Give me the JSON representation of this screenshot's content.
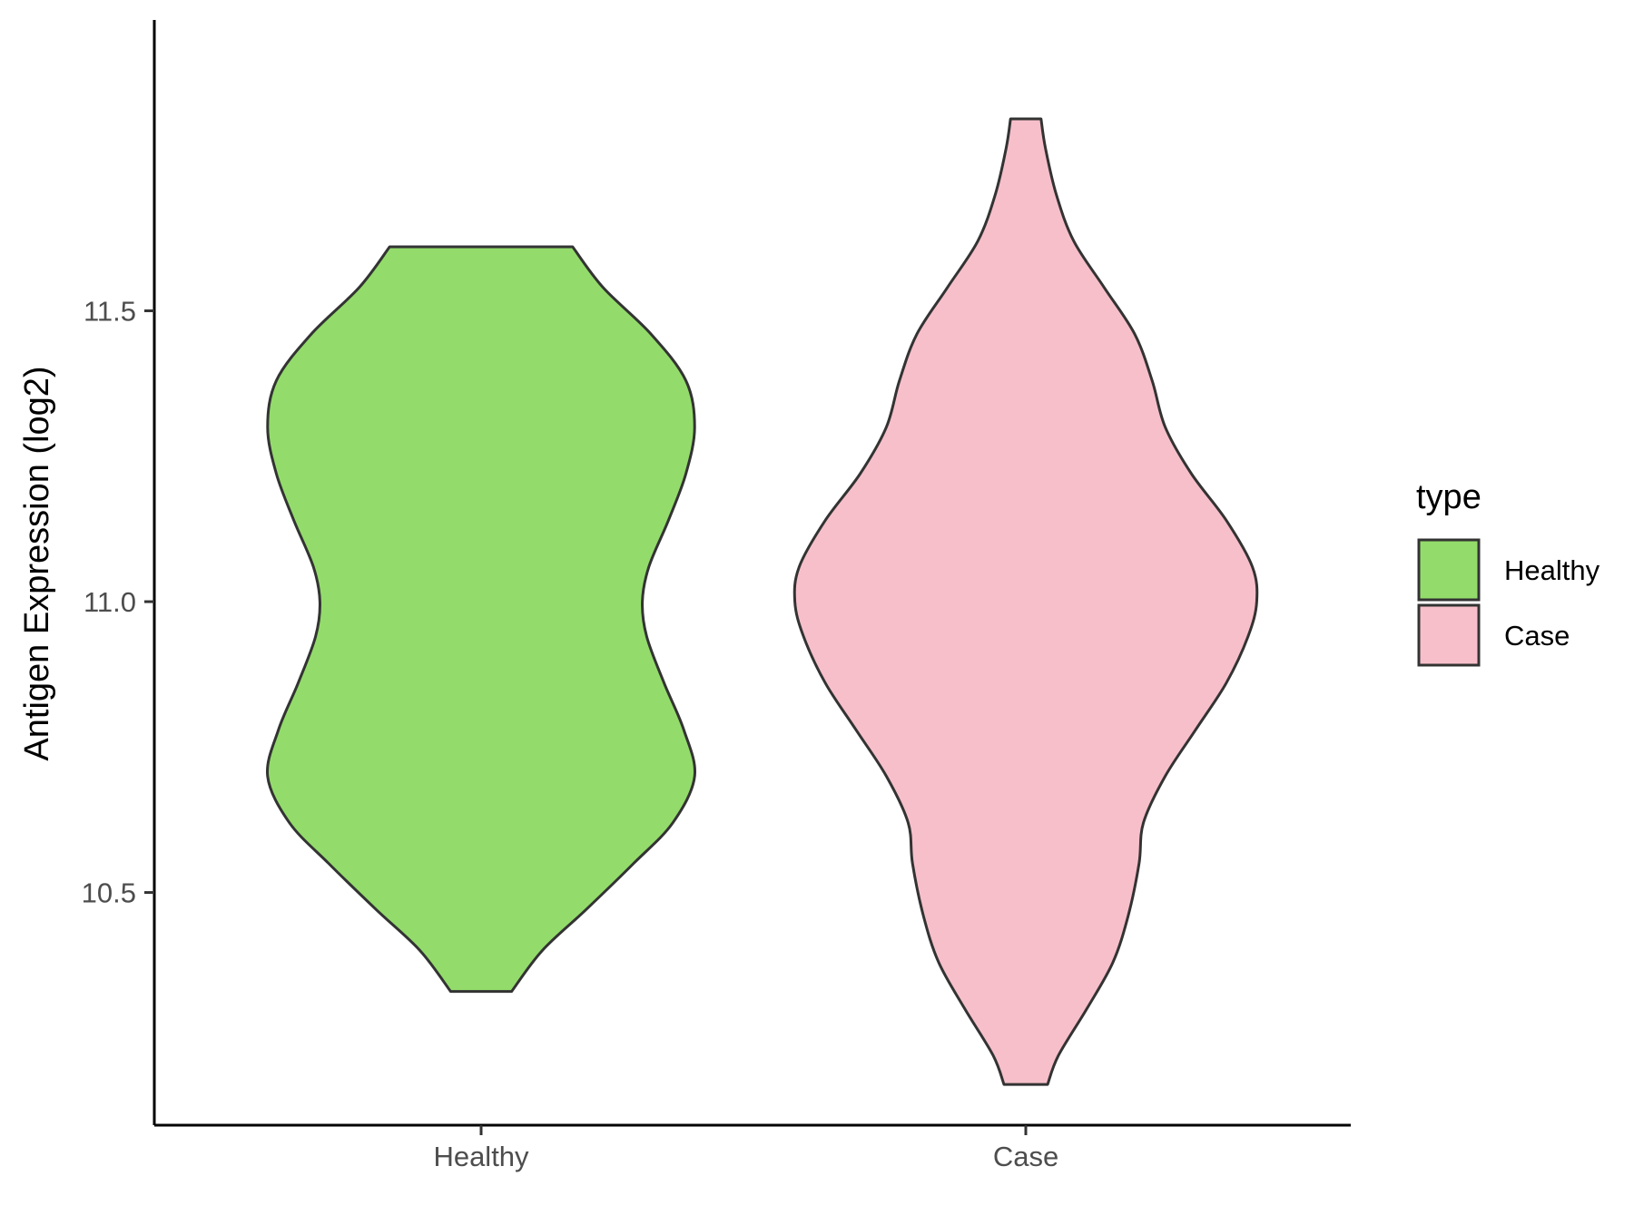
{
  "chart_data": {
    "type": "violin",
    "xlabel": "",
    "ylabel": "Antigen Expression (log2)",
    "ylim": [
      10.1,
      12.0
    ],
    "yticks": [
      10.5,
      11.0,
      11.5
    ],
    "ytick_labels": [
      "10.5",
      "11.0",
      "11.5"
    ],
    "categories": [
      "Healthy",
      "Case"
    ],
    "grid": false,
    "legend": {
      "title": "type",
      "position": "right",
      "entries": [
        "Healthy",
        "Case"
      ]
    },
    "series": [
      {
        "name": "Healthy",
        "color": "#93dc6b",
        "min": 10.33,
        "max": 11.61,
        "density_profile": [
          [
            10.33,
            0.07
          ],
          [
            10.4,
            0.14
          ],
          [
            10.47,
            0.24
          ],
          [
            10.55,
            0.35
          ],
          [
            10.62,
            0.44
          ],
          [
            10.7,
            0.49
          ],
          [
            10.78,
            0.465
          ],
          [
            10.86,
            0.42
          ],
          [
            10.94,
            0.38
          ],
          [
            11.0,
            0.37
          ],
          [
            11.06,
            0.385
          ],
          [
            11.14,
            0.43
          ],
          [
            11.22,
            0.47
          ],
          [
            11.3,
            0.49
          ],
          [
            11.38,
            0.47
          ],
          [
            11.46,
            0.39
          ],
          [
            11.54,
            0.28
          ],
          [
            11.61,
            0.21
          ]
        ]
      },
      {
        "name": "Case",
        "color": "#f7bfca",
        "min": 10.17,
        "max": 11.83,
        "density_profile": [
          [
            10.17,
            0.05
          ],
          [
            10.22,
            0.075
          ],
          [
            10.3,
            0.14
          ],
          [
            10.38,
            0.2
          ],
          [
            10.46,
            0.235
          ],
          [
            10.55,
            0.26
          ],
          [
            10.62,
            0.27
          ],
          [
            10.7,
            0.32
          ],
          [
            10.78,
            0.39
          ],
          [
            10.86,
            0.46
          ],
          [
            10.94,
            0.51
          ],
          [
            11.0,
            0.53
          ],
          [
            11.06,
            0.52
          ],
          [
            11.14,
            0.46
          ],
          [
            11.22,
            0.38
          ],
          [
            11.3,
            0.32
          ],
          [
            11.38,
            0.29
          ],
          [
            11.46,
            0.25
          ],
          [
            11.54,
            0.18
          ],
          [
            11.62,
            0.11
          ],
          [
            11.7,
            0.07
          ],
          [
            11.78,
            0.045
          ],
          [
            11.83,
            0.035
          ]
        ]
      }
    ]
  }
}
